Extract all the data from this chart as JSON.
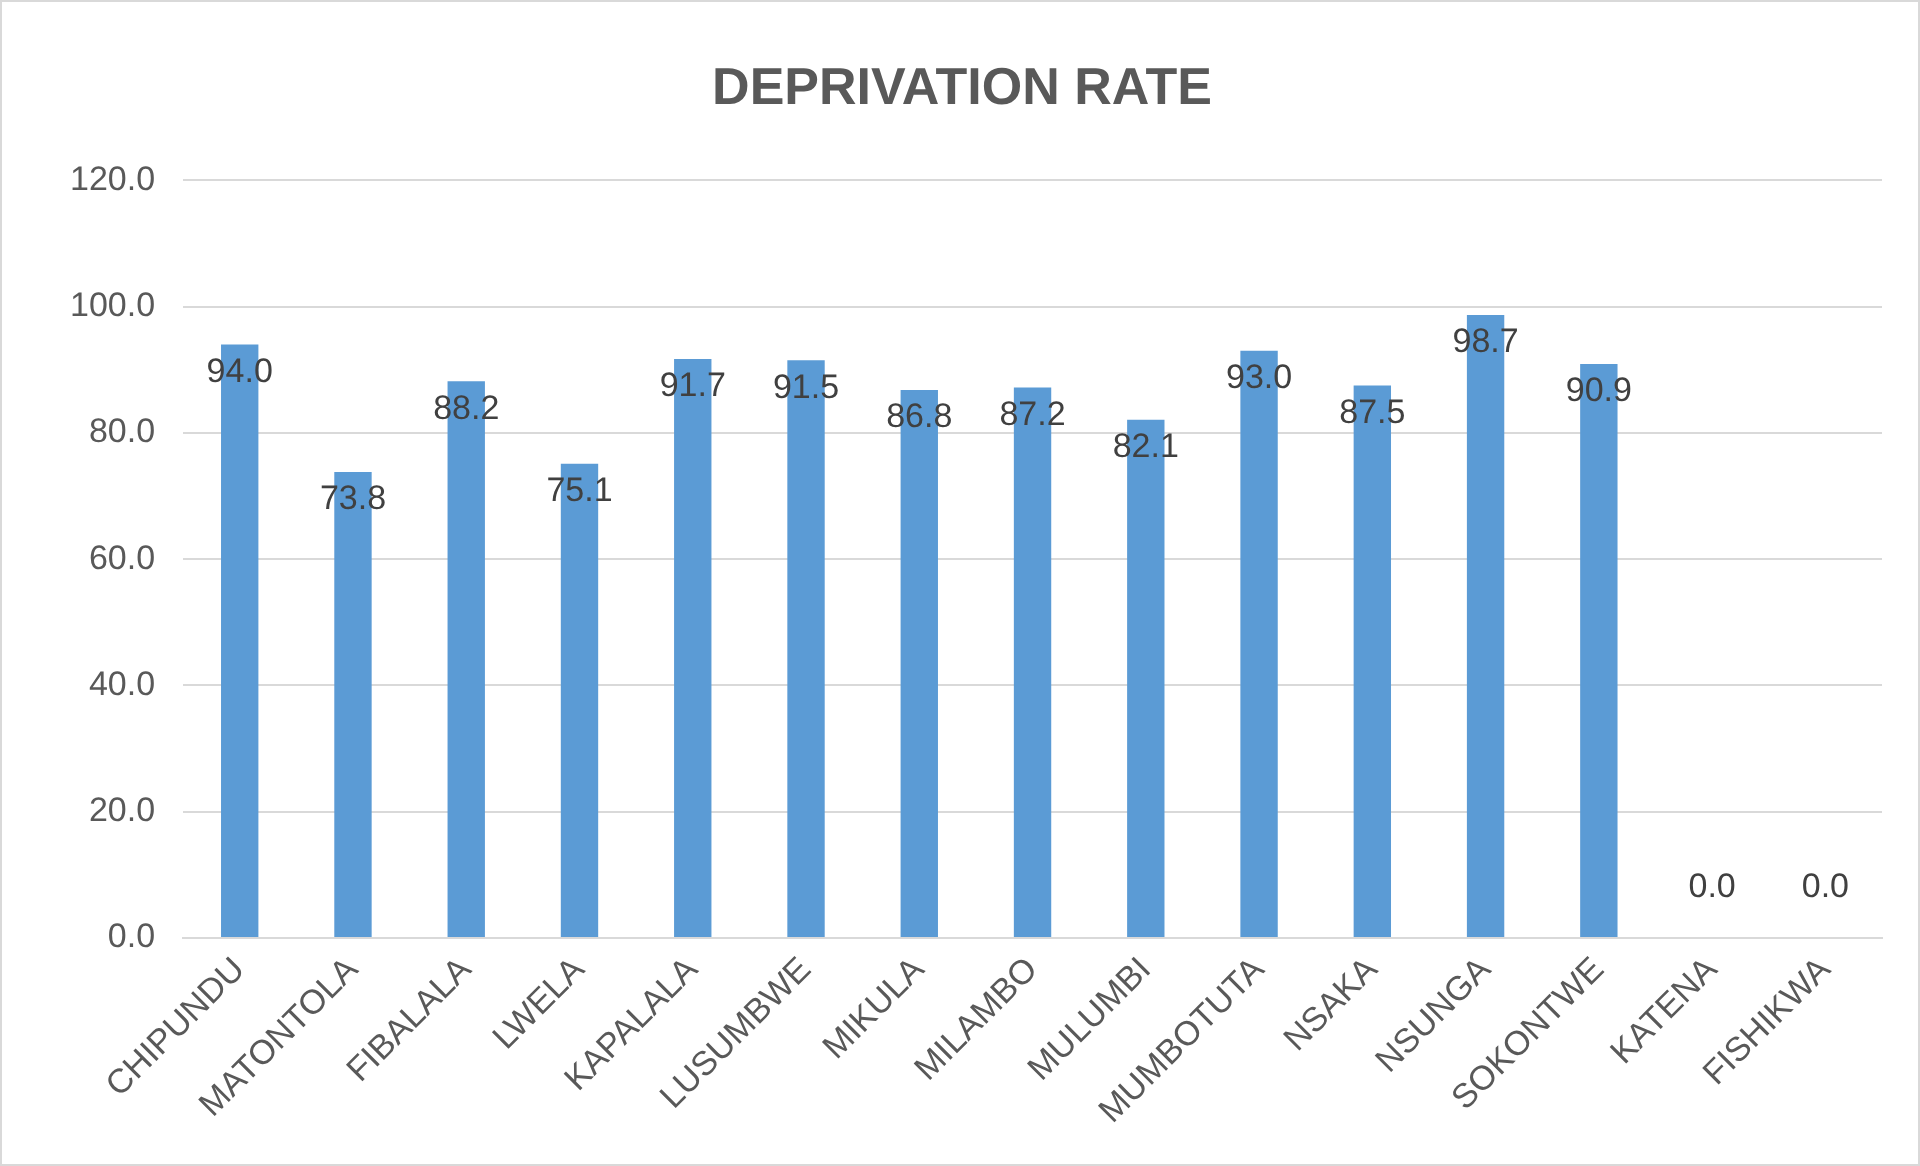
{
  "chart_data": {
    "type": "bar",
    "title": "DEPRIVATION RATE",
    "categories": [
      "CHIPUNDU",
      "MATONTOLA",
      "FIBALALA",
      "LWELA",
      "KAPALALA",
      "LUSUMBWE",
      "MIKULA",
      "MILAMBO",
      "MULUMBI",
      "MUMBOTUTA",
      "NSAKA",
      "NSUNGA",
      "SOKONTWE",
      "KATENA",
      "FISHIKWA"
    ],
    "values": [
      94.0,
      73.8,
      88.2,
      75.1,
      91.7,
      91.5,
      86.8,
      87.2,
      82.1,
      93.0,
      87.5,
      98.7,
      90.9,
      0.0,
      0.0
    ],
    "value_labels": [
      "94.0",
      "73.8",
      "88.2",
      "75.1",
      "91.7",
      "91.5",
      "86.8",
      "87.2",
      "82.1",
      "93.0",
      "87.5",
      "98.7",
      "90.9",
      "0.0",
      "0.0"
    ],
    "color": "#5b9bd5",
    "ylim": [
      0,
      120
    ],
    "yticks": [
      {
        "value": 0,
        "label": "0.0"
      },
      {
        "value": 20,
        "label": "20.0"
      },
      {
        "value": 40,
        "label": "40.0"
      },
      {
        "value": 60,
        "label": "60.0"
      },
      {
        "value": 80,
        "label": "80.0"
      },
      {
        "value": 100,
        "label": "100.0"
      },
      {
        "value": 120,
        "label": "120.0"
      }
    ],
    "grid": "y",
    "legend": false
  }
}
